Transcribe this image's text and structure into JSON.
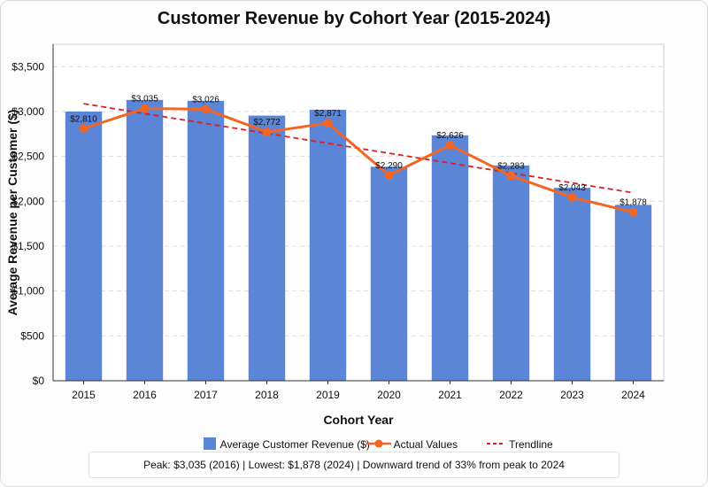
{
  "chart_data": {
    "type": "bar",
    "title": "Customer Revenue by Cohort Year (2015-2024)",
    "xlabel": "Cohort Year",
    "ylabel": "Average Revenue per Customer ($)",
    "categories": [
      "2015",
      "2016",
      "2017",
      "2018",
      "2019",
      "2020",
      "2021",
      "2022",
      "2023",
      "2024"
    ],
    "series": [
      {
        "name": "Average Customer Revenue ($)",
        "type": "bar",
        "color": "#5b85d6",
        "values": [
          3000,
          3130,
          3120,
          2955,
          3020,
          2385,
          2735,
          2400,
          2150,
          1960
        ]
      },
      {
        "name": "Actual Values",
        "type": "line",
        "color": "#f26522",
        "values": [
          2810,
          3035,
          3026,
          2772,
          2871,
          2290,
          2626,
          2283,
          2043,
          1878
        ]
      },
      {
        "name": "Trendline",
        "type": "line",
        "style": "dashed",
        "color": "#e02020",
        "values": [
          3088,
          2977,
          2867,
          2757,
          2646,
          2536,
          2426,
          2315,
          2205,
          2095
        ]
      }
    ],
    "data_labels": [
      "$2,810",
      "$3,035",
      "$3,026",
      "$2,772",
      "$2,871",
      "$2,290",
      "$2,626",
      "$2,283",
      "$2,043",
      "$1,878"
    ],
    "ylim": [
      0,
      3750
    ],
    "yticks": [
      0,
      500,
      1000,
      1500,
      2000,
      2500,
      3000,
      3500
    ],
    "ytick_labels": [
      "$0",
      "$500",
      "$1,000",
      "$1,500",
      "$2,000",
      "$2,500",
      "$3,000",
      "$3,500"
    ],
    "grid": true,
    "legend_position": "bottom"
  },
  "summary": "Peak: $3,035 (2016) | Lowest: $1,878 (2024) | Downward trend of 33% from peak to 2024"
}
